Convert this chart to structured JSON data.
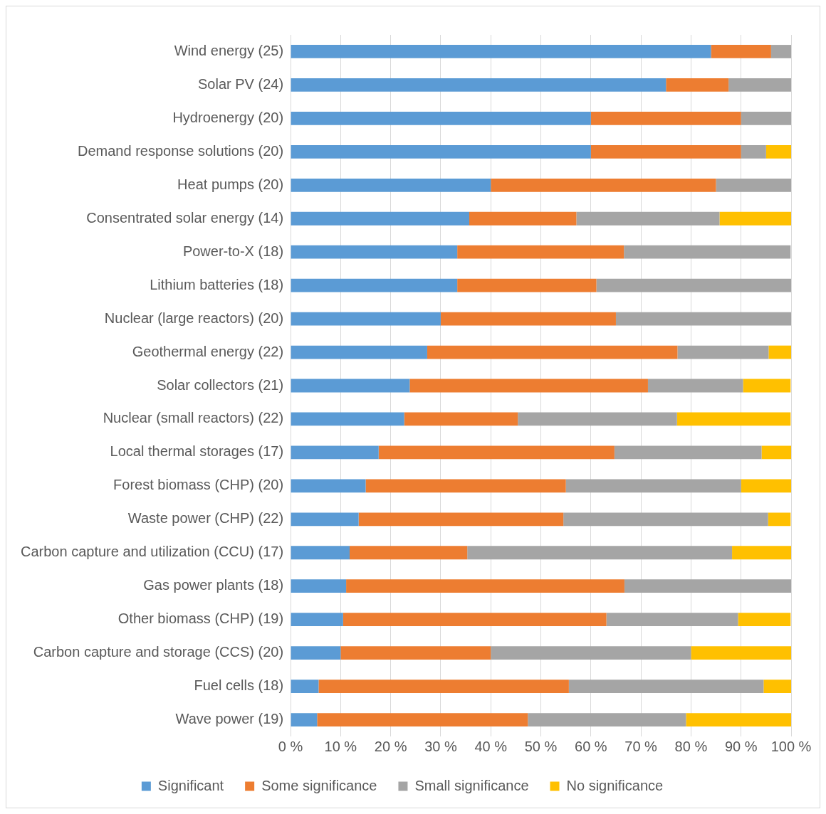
{
  "chart_data": {
    "type": "bar",
    "orientation": "horizontal",
    "stacked": true,
    "categories": [
      "Wind energy (25)",
      "Solar PV (24)",
      "Hydroenergy (20)",
      "Demand response solutions (20)",
      "Heat pumps (20)",
      "Consentrated solar energy (14)",
      "Power-to-X (18)",
      "Lithium batteries (18)",
      "Nuclear (large reactors) (20)",
      "Geothermal energy (22)",
      "Solar collectors (21)",
      "Nuclear (small reactors) (22)",
      "Local thermal storages (17)",
      "Forest biomass (CHP) (20)",
      "Waste power (CHP) (22)",
      "Carbon capture and utilization (CCU) (17)",
      "Gas power plants (18)",
      "Other biomass (CHP) (19)",
      "Carbon capture and storage (CCS) (20)",
      "Fuel cells (18)",
      "Wave power (19)"
    ],
    "series": [
      {
        "name": "Significant",
        "color": "#5b9bd5",
        "values": [
          84,
          75,
          60,
          60,
          40,
          35.7,
          33.3,
          33.3,
          30,
          27.3,
          23.8,
          22.7,
          17.6,
          15,
          13.6,
          11.8,
          11.1,
          10.5,
          10,
          5.6,
          5.3
        ]
      },
      {
        "name": "Some significance",
        "color": "#ed7d31",
        "values": [
          12,
          12.5,
          30,
          30,
          45,
          21.4,
          33.3,
          27.8,
          35,
          50,
          47.6,
          22.7,
          47.1,
          40,
          40.9,
          23.5,
          55.6,
          52.6,
          30,
          50,
          42.1
        ]
      },
      {
        "name": "Small significance",
        "color": "#a5a5a5",
        "values": [
          4,
          12.5,
          10,
          5,
          15,
          28.6,
          33.3,
          38.9,
          35,
          18.2,
          19,
          31.8,
          29.4,
          35,
          40.9,
          52.9,
          33.3,
          26.3,
          40,
          38.9,
          31.6
        ]
      },
      {
        "name": "No significance",
        "color": "#ffc000",
        "values": [
          0,
          0,
          0,
          5,
          0,
          14.3,
          0,
          0,
          0,
          4.5,
          9.5,
          22.7,
          5.9,
          10,
          4.5,
          11.8,
          0,
          10.5,
          20,
          5.6,
          21.1
        ]
      }
    ],
    "xlim": [
      0,
      100
    ],
    "xticks": [
      {
        "value": 0,
        "label": "0 %"
      },
      {
        "value": 10,
        "label": "10 %"
      },
      {
        "value": 20,
        "label": "20 %"
      },
      {
        "value": 30,
        "label": "30 %"
      },
      {
        "value": 40,
        "label": "40 %"
      },
      {
        "value": 50,
        "label": "50 %"
      },
      {
        "value": 60,
        "label": "60 %"
      },
      {
        "value": 70,
        "label": "70 %"
      },
      {
        "value": 80,
        "label": "80 %"
      },
      {
        "value": 90,
        "label": "90 %"
      },
      {
        "value": 100,
        "label": "100 %"
      }
    ],
    "grid": "x",
    "legend": "bottom"
  }
}
